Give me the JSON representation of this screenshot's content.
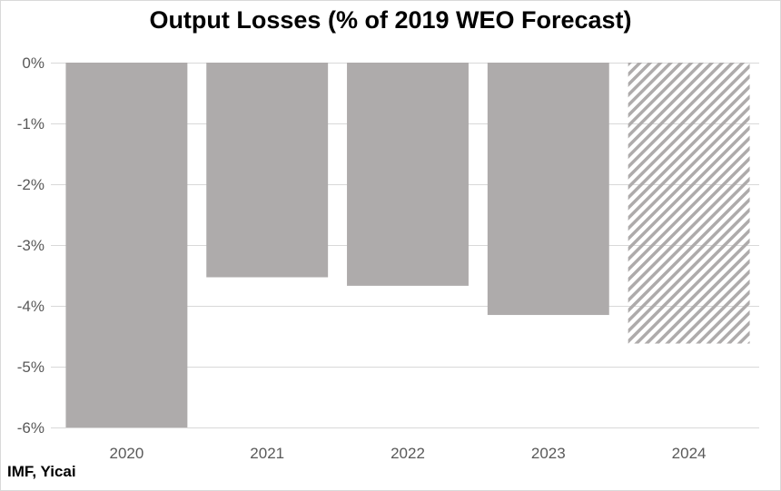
{
  "chart_data": {
    "type": "bar",
    "title": "Output Losses (% of 2019 WEO Forecast)",
    "source": "IMF, Yicai",
    "categories": [
      "2020",
      "2021",
      "2022",
      "2023",
      "2024"
    ],
    "values": [
      -6.0,
      -3.53,
      -3.67,
      -4.15,
      -4.62
    ],
    "projected": [
      false,
      false,
      false,
      false,
      true
    ],
    "ylim": [
      -6,
      0
    ],
    "yticks": [
      0,
      -1,
      -2,
      -3,
      -4,
      -5,
      -6
    ],
    "ytick_labels": [
      "0%",
      "-1%",
      "-2%",
      "-3%",
      "-4%",
      "-5%",
      "-6%"
    ],
    "grid": true,
    "bar_color": "#aeabab",
    "hatch_color": "#aeabab",
    "grid_color": "#d9d9d9"
  }
}
